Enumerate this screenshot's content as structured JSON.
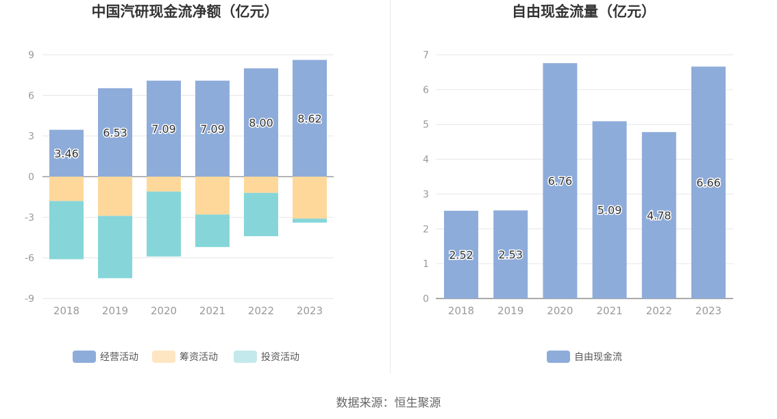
{
  "colors": {
    "operating": "#8eacda",
    "financing": "#fed89b",
    "investing": "#86d6d9",
    "investing_legend": "#c4e9ec",
    "financing_legend": "#fde6c1",
    "free_cash_flow": "#8eacda",
    "axis_text": "#999999",
    "grid": "#e6e6e6",
    "title": "#333333",
    "legend_text": "#555555"
  },
  "chart_data": [
    {
      "type": "bar",
      "stacked": true,
      "title": "中国汽研现金流净额（亿元）",
      "categories": [
        "2018",
        "2019",
        "2020",
        "2021",
        "2022",
        "2023"
      ],
      "ylim": [
        -9,
        9
      ],
      "yticks": [
        "9",
        "6",
        "3",
        "0",
        "-3",
        "-6",
        "-9"
      ],
      "ytick_values": [
        9,
        6,
        3,
        0,
        -3,
        -6,
        -9
      ],
      "grid": true,
      "legend_position": "bottom",
      "series": [
        {
          "name": "经营活动",
          "values": [
            3.46,
            6.53,
            7.09,
            7.09,
            8.0,
            8.62
          ],
          "labels": [
            "3.46",
            "6.53",
            "7.09",
            "7.09",
            "8.00",
            "8.62"
          ]
        },
        {
          "name": "筹资活动",
          "values": [
            -1.8,
            -2.9,
            -1.1,
            -2.8,
            -1.2,
            -3.1
          ]
        },
        {
          "name": "投资活动",
          "values": [
            -4.3,
            -4.6,
            -4.8,
            -2.4,
            -3.2,
            -0.3
          ]
        }
      ]
    },
    {
      "type": "bar",
      "title": "自由现金流量（亿元）",
      "categories": [
        "2018",
        "2019",
        "2020",
        "2021",
        "2022",
        "2023"
      ],
      "ylim": [
        0,
        7
      ],
      "yticks": [
        "7",
        "6",
        "5",
        "4",
        "3",
        "2",
        "1",
        "0"
      ],
      "ytick_values": [
        7,
        6,
        5,
        4,
        3,
        2,
        1,
        0
      ],
      "grid": true,
      "legend_position": "bottom",
      "series": [
        {
          "name": "自由现金流",
          "values": [
            2.52,
            2.53,
            6.76,
            5.09,
            4.78,
            6.66
          ],
          "labels": [
            "2.52",
            "2.53",
            "6.76",
            "5.09",
            "4.78",
            "6.66"
          ]
        }
      ]
    }
  ],
  "source_text": "数据来源：恒生聚源"
}
